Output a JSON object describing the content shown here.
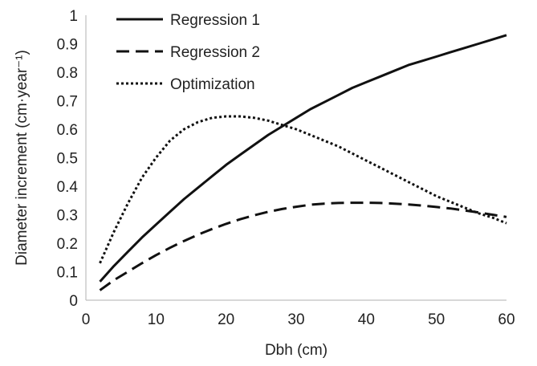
{
  "chart_data": {
    "type": "line",
    "xlabel": "Dbh (cm)",
    "ylabel": "Diameter increment (cm·year⁻¹)",
    "xlim": [
      0,
      60
    ],
    "ylim": [
      0,
      1
    ],
    "x_ticks": [
      0,
      10,
      20,
      30,
      40,
      50,
      60
    ],
    "y_ticks": [
      0,
      0.1,
      0.2,
      0.3,
      0.4,
      0.5,
      0.6,
      0.7,
      0.8,
      0.9,
      1
    ],
    "x_tick_labels": [
      "0",
      "10",
      "20",
      "30",
      "40",
      "50",
      "60"
    ],
    "y_tick_labels": [
      "0",
      "0.1",
      "0.2",
      "0.3",
      "0.4",
      "0.5",
      "0.6",
      "0.7",
      "0.8",
      "0.9",
      "1"
    ],
    "grid": false,
    "legend_position": "top-left",
    "series": [
      {
        "name": "Regression 1",
        "style": "solid",
        "x": [
          2,
          4,
          6,
          8,
          10,
          12,
          14,
          16,
          18,
          20,
          22,
          24,
          26,
          28,
          30,
          32,
          34,
          36,
          38,
          40,
          42,
          44,
          46,
          48,
          50,
          52,
          54,
          56,
          58,
          60
        ],
        "y": [
          0.065,
          0.12,
          0.17,
          0.22,
          0.265,
          0.31,
          0.355,
          0.395,
          0.435,
          0.475,
          0.51,
          0.545,
          0.58,
          0.61,
          0.64,
          0.67,
          0.695,
          0.72,
          0.745,
          0.765,
          0.785,
          0.805,
          0.825,
          0.84,
          0.855,
          0.87,
          0.885,
          0.9,
          0.915,
          0.93
        ]
      },
      {
        "name": "Regression 2",
        "style": "dashed",
        "x": [
          2,
          4,
          6,
          8,
          10,
          12,
          14,
          16,
          18,
          20,
          22,
          24,
          26,
          28,
          30,
          32,
          34,
          36,
          38,
          40,
          42,
          44,
          46,
          48,
          50,
          52,
          54,
          56,
          58,
          60
        ],
        "y": [
          0.035,
          0.07,
          0.1,
          0.13,
          0.158,
          0.184,
          0.208,
          0.23,
          0.25,
          0.268,
          0.284,
          0.298,
          0.31,
          0.32,
          0.328,
          0.335,
          0.339,
          0.341,
          0.342,
          0.342,
          0.341,
          0.339,
          0.336,
          0.332,
          0.327,
          0.322,
          0.315,
          0.308,
          0.3,
          0.292
        ]
      },
      {
        "name": "Optimization",
        "style": "dotted",
        "x": [
          2,
          4,
          6,
          8,
          10,
          12,
          14,
          16,
          18,
          20,
          22,
          24,
          26,
          28,
          30,
          32,
          34,
          36,
          38,
          40,
          42,
          44,
          46,
          48,
          50,
          52,
          54,
          56,
          58,
          60
        ],
        "y": [
          0.13,
          0.24,
          0.34,
          0.43,
          0.5,
          0.56,
          0.6,
          0.625,
          0.64,
          0.645,
          0.645,
          0.64,
          0.63,
          0.615,
          0.6,
          0.58,
          0.56,
          0.54,
          0.515,
          0.49,
          0.465,
          0.44,
          0.415,
          0.39,
          0.365,
          0.345,
          0.325,
          0.305,
          0.29,
          0.27
        ]
      }
    ]
  }
}
